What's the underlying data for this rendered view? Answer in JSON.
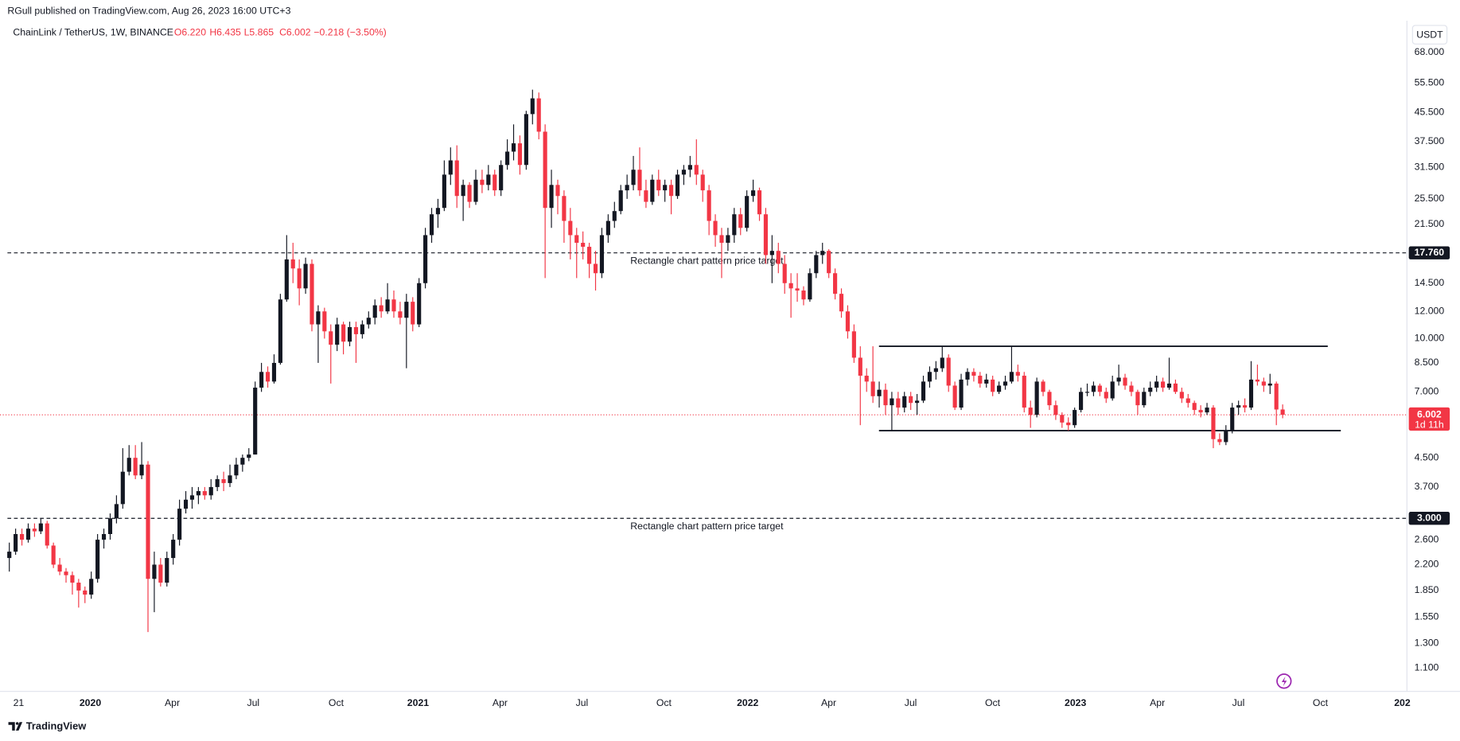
{
  "header": {
    "publisher": "RGull published on TradingView.com, Aug 26, 2023 16:00 UTC+3"
  },
  "footer": {
    "logo": "TradingView"
  },
  "chart_data": {
    "type": "candlestick",
    "symbol": "ChainLink / TetherUS, 1W, BINANCE",
    "legend_values": [
      "O6.220",
      "H6.435",
      "L5.865",
      "C6.002",
      "−0.218 (−3.50%)"
    ],
    "currency": "USDT",
    "log_scale": true,
    "grid": false,
    "up_color": "#131722",
    "down_color": "#f23645",
    "ylim": [
      0.953,
      84.1
    ],
    "yticks": [
      {
        "value": 68,
        "label": "68.000"
      },
      {
        "value": 55.5,
        "label": "55.500"
      },
      {
        "value": 45.5,
        "label": "45.500"
      },
      {
        "value": 37.5,
        "label": "37.500"
      },
      {
        "value": 31.5,
        "label": "31.500"
      },
      {
        "value": 25.5,
        "label": "25.500"
      },
      {
        "value": 21.5,
        "label": "21.500"
      },
      {
        "value": 14.5,
        "label": "14.500"
      },
      {
        "value": 12,
        "label": "12.000"
      },
      {
        "value": 10,
        "label": "10.000"
      },
      {
        "value": 8.5,
        "label": "8.500"
      },
      {
        "value": 7,
        "label": "7.000"
      },
      {
        "value": 4.5,
        "label": "4.500"
      },
      {
        "value": 3.7,
        "label": "3.700"
      },
      {
        "value": 2.6,
        "label": "2.600"
      },
      {
        "value": 2.2,
        "label": "2.200"
      },
      {
        "value": 1.85,
        "label": "1.850"
      },
      {
        "value": 1.55,
        "label": "1.550"
      },
      {
        "value": 1.3,
        "label": "1.300"
      },
      {
        "value": 1.1,
        "label": "1.100"
      }
    ],
    "xticks": [
      "21",
      "2020",
      "Apr",
      "Jul",
      "Oct",
      "2021",
      "Apr",
      "Jul",
      "Oct",
      "2022",
      "Apr",
      "Jul",
      "Oct",
      "2023",
      "Apr",
      "Jul",
      "Oct",
      "202"
    ],
    "last_price": {
      "value": 6.002,
      "label": "6.002",
      "countdown": "1d 11h"
    },
    "levels": [
      {
        "value": 17.76,
        "label": "17.760",
        "annotation": "Rectangle chart pattern price target"
      },
      {
        "value": 3.0,
        "label": "3.000",
        "annotation": "Rectangle chart pattern price target"
      }
    ],
    "rectangle": {
      "top": 9.5,
      "bottom": 5.4
    },
    "candles": [
      [
        2.3,
        2.55,
        2.1,
        2.4
      ],
      [
        2.4,
        2.8,
        2.35,
        2.7
      ],
      [
        2.7,
        2.8,
        2.5,
        2.6
      ],
      [
        2.6,
        2.9,
        2.55,
        2.8
      ],
      [
        2.8,
        2.9,
        2.65,
        2.75
      ],
      [
        2.75,
        3.0,
        2.7,
        2.9
      ],
      [
        2.9,
        2.95,
        2.45,
        2.5
      ],
      [
        2.5,
        2.55,
        2.15,
        2.2
      ],
      [
        2.2,
        2.3,
        2.05,
        2.1
      ],
      [
        2.1,
        2.15,
        1.95,
        2.05
      ],
      [
        2.05,
        2.1,
        1.8,
        1.95
      ],
      [
        1.95,
        2.0,
        1.65,
        1.85
      ],
      [
        1.85,
        1.9,
        1.7,
        1.8
      ],
      [
        1.8,
        2.1,
        1.75,
        2.0
      ],
      [
        2.0,
        2.7,
        1.95,
        2.6
      ],
      [
        2.6,
        2.8,
        2.45,
        2.7
      ],
      [
        2.7,
        3.1,
        2.6,
        3.0
      ],
      [
        3.0,
        3.5,
        2.9,
        3.3
      ],
      [
        3.3,
        4.8,
        3.2,
        4.1
      ],
      [
        4.1,
        4.9,
        4.0,
        4.5
      ],
      [
        4.5,
        4.9,
        3.9,
        4.0
      ],
      [
        4.0,
        5.0,
        3.9,
        4.3
      ],
      [
        4.3,
        4.4,
        1.4,
        2.0
      ],
      [
        2.0,
        2.4,
        1.6,
        2.2
      ],
      [
        2.2,
        2.3,
        1.9,
        1.95
      ],
      [
        1.95,
        2.4,
        1.9,
        2.3
      ],
      [
        2.3,
        2.7,
        2.2,
        2.6
      ],
      [
        2.6,
        3.4,
        2.5,
        3.2
      ],
      [
        3.2,
        3.6,
        3.1,
        3.4
      ],
      [
        3.4,
        3.7,
        3.2,
        3.5
      ],
      [
        3.5,
        3.7,
        3.3,
        3.6
      ],
      [
        3.6,
        3.7,
        3.4,
        3.5
      ],
      [
        3.5,
        3.9,
        3.4,
        3.7
      ],
      [
        3.7,
        4.0,
        3.6,
        3.9
      ],
      [
        3.9,
        4.1,
        3.6,
        3.8
      ],
      [
        3.8,
        4.3,
        3.7,
        4.0
      ],
      [
        4.0,
        4.5,
        3.9,
        4.3
      ],
      [
        4.3,
        4.6,
        4.1,
        4.5
      ],
      [
        4.5,
        4.8,
        4.4,
        4.6
      ],
      [
        4.6,
        7.5,
        4.6,
        7.2
      ],
      [
        7.2,
        8.5,
        7.0,
        8.0
      ],
      [
        8.0,
        8.3,
        7.2,
        7.5
      ],
      [
        7.5,
        9.0,
        7.4,
        8.5
      ],
      [
        8.5,
        13.5,
        8.4,
        13
      ],
      [
        13,
        20,
        12.8,
        17
      ],
      [
        17,
        19,
        14.5,
        16
      ],
      [
        16,
        17,
        12.5,
        14
      ],
      [
        14,
        17.2,
        13.5,
        16.5
      ],
      [
        16.5,
        17,
        10.5,
        11
      ],
      [
        11,
        12.5,
        8.5,
        12
      ],
      [
        12,
        12.3,
        10,
        10.5
      ],
      [
        10.5,
        11,
        7.4,
        9.6
      ],
      [
        9.6,
        11.5,
        9.2,
        11
      ],
      [
        11,
        11.2,
        9.0,
        9.8
      ],
      [
        9.8,
        11.2,
        9.5,
        10.8
      ],
      [
        10.8,
        11.2,
        8.5,
        10.3
      ],
      [
        10.3,
        11.3,
        10,
        11
      ],
      [
        11,
        12,
        10.7,
        11.5
      ],
      [
        11.5,
        13,
        11,
        12.5
      ],
      [
        12.5,
        13.2,
        11.5,
        12
      ],
      [
        12,
        14.5,
        11.8,
        13
      ],
      [
        13,
        13.8,
        11.5,
        12
      ],
      [
        12,
        12.8,
        11,
        11.5
      ],
      [
        11.5,
        13.5,
        8.2,
        12.8
      ],
      [
        12.8,
        13.2,
        10.5,
        11
      ],
      [
        11,
        15,
        10.8,
        14.5
      ],
      [
        14.5,
        21,
        14,
        20
      ],
      [
        20,
        24,
        19,
        23
      ],
      [
        23,
        25.5,
        21,
        24
      ],
      [
        24,
        33,
        23.5,
        30
      ],
      [
        30,
        36,
        28,
        33
      ],
      [
        33,
        36.5,
        24,
        26
      ],
      [
        26,
        29,
        22,
        28
      ],
      [
        28,
        28.5,
        24,
        25
      ],
      [
        25,
        31,
        24.5,
        29
      ],
      [
        29,
        31,
        26.5,
        28
      ],
      [
        28,
        32,
        27,
        30
      ],
      [
        30,
        31,
        26,
        27
      ],
      [
        27,
        33,
        26,
        32
      ],
      [
        32,
        38,
        31,
        35
      ],
      [
        35,
        42,
        33,
        37
      ],
      [
        37,
        39,
        30,
        32
      ],
      [
        32,
        46,
        31,
        45
      ],
      [
        45,
        53,
        42,
        50
      ],
      [
        50,
        52,
        38,
        40
      ],
      [
        40,
        42,
        15,
        24
      ],
      [
        24,
        31,
        21,
        28
      ],
      [
        28,
        29,
        23,
        26
      ],
      [
        26,
        27,
        19,
        22
      ],
      [
        22,
        24,
        17,
        20
      ],
      [
        20,
        21,
        15,
        19
      ],
      [
        19,
        20.5,
        17,
        18.5
      ],
      [
        18.5,
        19,
        15,
        16.5
      ],
      [
        16.5,
        18,
        13.8,
        15.5
      ],
      [
        15.5,
        21,
        15,
        20
      ],
      [
        20,
        23,
        19,
        22
      ],
      [
        22,
        25,
        21,
        23.5
      ],
      [
        23.5,
        28,
        23,
        27
      ],
      [
        27,
        30,
        25.5,
        28
      ],
      [
        28,
        34,
        27,
        31
      ],
      [
        31,
        36,
        26,
        27
      ],
      [
        27,
        29,
        24,
        25
      ],
      [
        25,
        30,
        24.5,
        29
      ],
      [
        29,
        31,
        26,
        27
      ],
      [
        27,
        29,
        25,
        28
      ],
      [
        28,
        29,
        23,
        26
      ],
      [
        26,
        31,
        25.5,
        30
      ],
      [
        30,
        32,
        28,
        31
      ],
      [
        31,
        34,
        29.5,
        32
      ],
      [
        32,
        38,
        28,
        30
      ],
      [
        30,
        31,
        25,
        27
      ],
      [
        27,
        28,
        20,
        22
      ],
      [
        22,
        23,
        18.5,
        20
      ],
      [
        20,
        21,
        15,
        19
      ],
      [
        19,
        21,
        18,
        20
      ],
      [
        20,
        24,
        19,
        23
      ],
      [
        23,
        24,
        20,
        21
      ],
      [
        21,
        27,
        20.5,
        26
      ],
      [
        26,
        29,
        25,
        27
      ],
      [
        27,
        27.5,
        22,
        23
      ],
      [
        23,
        24,
        16.5,
        17.5
      ],
      [
        17.5,
        20,
        14.5,
        18
      ],
      [
        18,
        19,
        15.5,
        16.5
      ],
      [
        16.5,
        17.5,
        13.5,
        14.5
      ],
      [
        14.5,
        15.5,
        11.5,
        14
      ],
      [
        14,
        15.5,
        12.8,
        13.8
      ],
      [
        13.8,
        14.2,
        12.5,
        13
      ],
      [
        13,
        16,
        12.8,
        15.5
      ],
      [
        15.5,
        18,
        15,
        17.5
      ],
      [
        17.5,
        19,
        16.5,
        18
      ],
      [
        18,
        18.2,
        15,
        15.5
      ],
      [
        15.5,
        16,
        13,
        13.5
      ],
      [
        13.5,
        14,
        11.5,
        12
      ],
      [
        12,
        12.5,
        10,
        10.5
      ],
      [
        10.5,
        11,
        8.5,
        8.8
      ],
      [
        8.8,
        9.5,
        5.6,
        7.8
      ],
      [
        7.8,
        8.2,
        7.0,
        7.5
      ],
      [
        7.5,
        9.5,
        6.5,
        6.8
      ],
      [
        6.8,
        7.5,
        6.3,
        7.1
      ],
      [
        7.1,
        7.4,
        6.0,
        6.4
      ],
      [
        6.4,
        7.0,
        5.4,
        6.7
      ],
      [
        6.7,
        7.0,
        6.0,
        6.3
      ],
      [
        6.3,
        7.0,
        6.1,
        6.8
      ],
      [
        6.8,
        7.0,
        6.2,
        6.5
      ],
      [
        6.5,
        6.9,
        6.0,
        6.6
      ],
      [
        6.6,
        7.8,
        6.5,
        7.5
      ],
      [
        7.5,
        8.3,
        7.2,
        8.0
      ],
      [
        8.0,
        8.6,
        7.6,
        8.2
      ],
      [
        8.2,
        9.5,
        8.0,
        8.8
      ],
      [
        8.8,
        9.0,
        7.0,
        7.3
      ],
      [
        7.3,
        7.5,
        6.2,
        6.3
      ],
      [
        6.3,
        7.9,
        6.2,
        7.6
      ],
      [
        7.6,
        8.2,
        7.3,
        8.0
      ],
      [
        8.0,
        8.2,
        7.5,
        7.8
      ],
      [
        7.8,
        8.0,
        7.2,
        7.4
      ],
      [
        7.4,
        7.9,
        7.2,
        7.6
      ],
      [
        7.6,
        7.8,
        6.8,
        7.0
      ],
      [
        7.0,
        7.5,
        6.9,
        7.3
      ],
      [
        7.3,
        7.8,
        7.1,
        7.5
      ],
      [
        7.5,
        9.5,
        7.4,
        8.0
      ],
      [
        8.0,
        8.4,
        7.5,
        7.8
      ],
      [
        7.8,
        8.0,
        6.1,
        6.3
      ],
      [
        6.3,
        6.6,
        5.5,
        6.0
      ],
      [
        6.0,
        7.7,
        5.9,
        7.5
      ],
      [
        7.5,
        7.6,
        6.8,
        7.0
      ],
      [
        7.0,
        7.1,
        6.2,
        6.4
      ],
      [
        6.4,
        6.6,
        5.8,
        6.0
      ],
      [
        6.0,
        6.1,
        5.5,
        5.7
      ],
      [
        5.7,
        5.9,
        5.4,
        5.6
      ],
      [
        5.6,
        6.3,
        5.5,
        6.2
      ],
      [
        6.2,
        7.2,
        6.1,
        7.0
      ],
      [
        7.0,
        7.4,
        6.8,
        7.0
      ],
      [
        7.0,
        7.5,
        6.8,
        7.3
      ],
      [
        7.3,
        7.4,
        6.8,
        7.0
      ],
      [
        7.0,
        7.2,
        6.5,
        6.7
      ],
      [
        6.7,
        7.8,
        6.6,
        7.5
      ],
      [
        7.5,
        8.4,
        7.3,
        7.7
      ],
      [
        7.7,
        7.9,
        7.1,
        7.3
      ],
      [
        7.3,
        7.5,
        6.8,
        7.0
      ],
      [
        7.0,
        7.1,
        6.0,
        6.4
      ],
      [
        6.4,
        7.2,
        6.3,
        7.0
      ],
      [
        7.0,
        7.5,
        6.8,
        7.2
      ],
      [
        7.2,
        7.8,
        7.0,
        7.5
      ],
      [
        7.5,
        7.7,
        7.0,
        7.2
      ],
      [
        7.2,
        8.8,
        7.1,
        7.4
      ],
      [
        7.4,
        7.6,
        6.9,
        7.0
      ],
      [
        7.0,
        7.2,
        6.5,
        6.7
      ],
      [
        6.7,
        6.9,
        6.3,
        6.5
      ],
      [
        6.5,
        6.6,
        6.0,
        6.2
      ],
      [
        6.2,
        6.4,
        5.9,
        6.1
      ],
      [
        6.1,
        6.5,
        6.0,
        6.3
      ],
      [
        6.3,
        6.4,
        4.8,
        5.1
      ],
      [
        5.1,
        5.3,
        4.9,
        5.0
      ],
      [
        5.0,
        5.6,
        4.9,
        5.4
      ],
      [
        5.4,
        6.5,
        5.3,
        6.3
      ],
      [
        6.3,
        6.6,
        6.0,
        6.4
      ],
      [
        6.4,
        6.7,
        6.1,
        6.3
      ],
      [
        6.3,
        8.6,
        6.2,
        7.6
      ],
      [
        7.6,
        8.4,
        7.3,
        7.5
      ],
      [
        7.5,
        7.7,
        7.0,
        7.3
      ],
      [
        7.3,
        7.9,
        6.9,
        7.4
      ],
      [
        7.4,
        7.5,
        5.6,
        6.22
      ],
      [
        6.22,
        6.435,
        5.865,
        6.002
      ]
    ]
  }
}
